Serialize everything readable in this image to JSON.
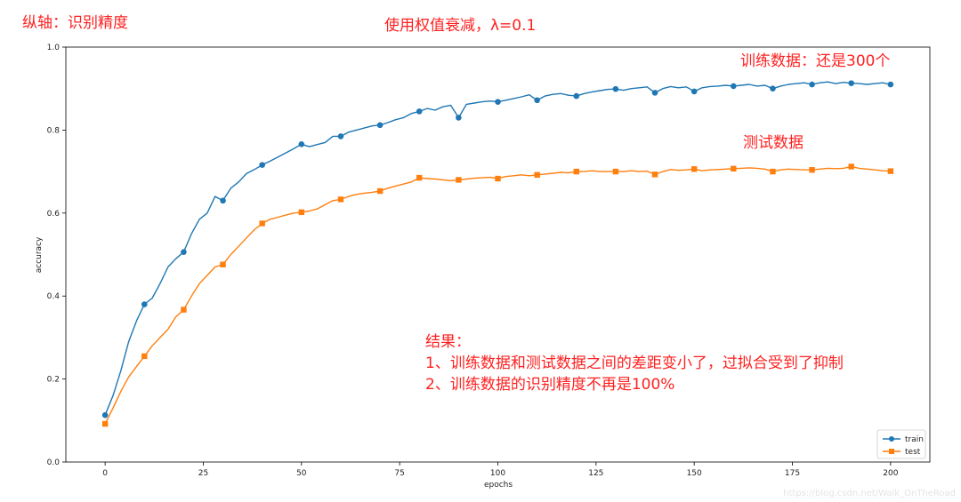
{
  "annotations": {
    "ylabel_note": "纵轴：识别精度",
    "title_note": "使用权值衰减，λ=0.1",
    "train_note": "训练数据：还是300个",
    "test_note": "测试数据",
    "result_title": "结果：",
    "result_line1": "1、训练数据和测试数据之间的差距变小了，过拟合受到了抑制",
    "result_line2": "2、训练数据的识别精度不再是100%"
  },
  "watermark": "https://blog.csdn.net/Walk_OnTheRoad",
  "colors": {
    "train": "#1f77b4",
    "test": "#ff7f0e",
    "annotation": "#ff2020"
  },
  "chart_data": {
    "type": "line",
    "title": "",
    "xlabel": "epochs",
    "ylabel": "accuracy",
    "xlim": [
      -10,
      210
    ],
    "ylim": [
      0.0,
      1.0
    ],
    "xticks": [
      0,
      25,
      50,
      75,
      100,
      125,
      150,
      175,
      200
    ],
    "yticks": [
      0.0,
      0.2,
      0.4,
      0.6,
      0.8,
      1.0
    ],
    "xtick_labels": [
      "0",
      "25",
      "50",
      "75",
      "100",
      "125",
      "150",
      "175",
      "200"
    ],
    "ytick_labels": [
      "0.0",
      "0.2",
      "0.4",
      "0.6",
      "0.8",
      "1.0"
    ],
    "grid": false,
    "legend_position": "bottom-right",
    "marker_every": 10,
    "series": [
      {
        "name": "train",
        "marker": "circle",
        "x": [
          0,
          2,
          4,
          6,
          8,
          10,
          12,
          14,
          16,
          18,
          20,
          22,
          24,
          26,
          28,
          30,
          32,
          34,
          36,
          38,
          40,
          42,
          44,
          46,
          48,
          50,
          52,
          54,
          56,
          58,
          60,
          62,
          64,
          66,
          68,
          70,
          72,
          74,
          76,
          78,
          80,
          82,
          84,
          86,
          88,
          90,
          92,
          94,
          96,
          98,
          100,
          102,
          104,
          106,
          108,
          110,
          112,
          114,
          116,
          118,
          120,
          122,
          124,
          126,
          128,
          130,
          132,
          134,
          136,
          138,
          140,
          142,
          144,
          146,
          148,
          150,
          152,
          154,
          156,
          158,
          160,
          162,
          164,
          166,
          168,
          170,
          172,
          174,
          176,
          178,
          180,
          182,
          184,
          186,
          188,
          190,
          192,
          194,
          196,
          198,
          200
        ],
        "y": [
          0.113,
          0.16,
          0.22,
          0.29,
          0.34,
          0.38,
          0.395,
          0.43,
          0.47,
          0.49,
          0.506,
          0.55,
          0.585,
          0.6,
          0.64,
          0.63,
          0.66,
          0.675,
          0.695,
          0.705,
          0.716,
          0.725,
          0.735,
          0.745,
          0.755,
          0.766,
          0.76,
          0.765,
          0.77,
          0.785,
          0.785,
          0.795,
          0.8,
          0.805,
          0.81,
          0.812,
          0.818,
          0.825,
          0.83,
          0.84,
          0.845,
          0.852,
          0.848,
          0.856,
          0.86,
          0.83,
          0.862,
          0.865,
          0.868,
          0.87,
          0.868,
          0.872,
          0.876,
          0.88,
          0.885,
          0.872,
          0.882,
          0.886,
          0.888,
          0.884,
          0.882,
          0.888,
          0.892,
          0.895,
          0.898,
          0.899,
          0.896,
          0.9,
          0.902,
          0.904,
          0.89,
          0.9,
          0.905,
          0.902,
          0.904,
          0.893,
          0.902,
          0.905,
          0.906,
          0.908,
          0.906,
          0.908,
          0.91,
          0.906,
          0.908,
          0.9,
          0.906,
          0.91,
          0.912,
          0.914,
          0.91,
          0.914,
          0.916,
          0.912,
          0.915,
          0.913,
          0.912,
          0.91,
          0.912,
          0.914,
          0.91
        ]
      },
      {
        "name": "test",
        "marker": "square",
        "x": [
          0,
          2,
          4,
          6,
          8,
          10,
          12,
          14,
          16,
          18,
          20,
          22,
          24,
          26,
          28,
          30,
          32,
          34,
          36,
          38,
          40,
          42,
          44,
          46,
          48,
          50,
          52,
          54,
          56,
          58,
          60,
          62,
          64,
          66,
          68,
          70,
          72,
          74,
          76,
          78,
          80,
          82,
          84,
          86,
          88,
          90,
          92,
          94,
          96,
          98,
          100,
          102,
          104,
          106,
          108,
          110,
          112,
          114,
          116,
          118,
          120,
          122,
          124,
          126,
          128,
          130,
          132,
          134,
          136,
          138,
          140,
          142,
          144,
          146,
          148,
          150,
          152,
          154,
          156,
          158,
          160,
          162,
          164,
          166,
          168,
          170,
          172,
          174,
          176,
          178,
          180,
          182,
          184,
          186,
          188,
          190,
          192,
          194,
          196,
          198,
          200
        ],
        "y": [
          0.092,
          0.13,
          0.17,
          0.205,
          0.23,
          0.255,
          0.28,
          0.3,
          0.32,
          0.35,
          0.367,
          0.4,
          0.43,
          0.45,
          0.47,
          0.476,
          0.5,
          0.52,
          0.54,
          0.56,
          0.575,
          0.585,
          0.59,
          0.595,
          0.6,
          0.602,
          0.605,
          0.61,
          0.62,
          0.63,
          0.633,
          0.64,
          0.645,
          0.648,
          0.65,
          0.653,
          0.66,
          0.665,
          0.67,
          0.675,
          0.685,
          0.683,
          0.682,
          0.68,
          0.678,
          0.68,
          0.682,
          0.684,
          0.685,
          0.686,
          0.683,
          0.688,
          0.69,
          0.692,
          0.69,
          0.692,
          0.694,
          0.696,
          0.698,
          0.697,
          0.7,
          0.7,
          0.702,
          0.7,
          0.7,
          0.7,
          0.7,
          0.702,
          0.7,
          0.701,
          0.693,
          0.7,
          0.705,
          0.703,
          0.704,
          0.706,
          0.702,
          0.704,
          0.705,
          0.706,
          0.707,
          0.708,
          0.709,
          0.708,
          0.706,
          0.7,
          0.704,
          0.706,
          0.705,
          0.704,
          0.704,
          0.706,
          0.708,
          0.707,
          0.708,
          0.712,
          0.708,
          0.706,
          0.704,
          0.702,
          0.701
        ]
      }
    ]
  }
}
